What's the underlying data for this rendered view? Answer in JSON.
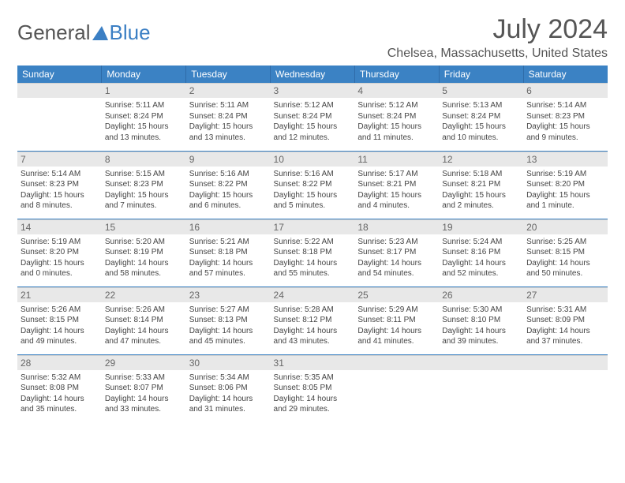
{
  "logo": {
    "part1": "General",
    "part2": "Blue"
  },
  "title": "July 2024",
  "location": "Chelsea, Massachusetts, United States",
  "day_headers": [
    "Sunday",
    "Monday",
    "Tuesday",
    "Wednesday",
    "Thursday",
    "Friday",
    "Saturday"
  ],
  "colors": {
    "header_bg": "#3b82c4",
    "daynum_bg": "#e8e8e8",
    "text": "#555",
    "cell_text": "#444"
  },
  "weeks": [
    [
      {
        "num": "",
        "sunrise": "",
        "sunset": "",
        "daylight1": "",
        "daylight2": ""
      },
      {
        "num": "1",
        "sunrise": "Sunrise: 5:11 AM",
        "sunset": "Sunset: 8:24 PM",
        "daylight1": "Daylight: 15 hours",
        "daylight2": "and 13 minutes."
      },
      {
        "num": "2",
        "sunrise": "Sunrise: 5:11 AM",
        "sunset": "Sunset: 8:24 PM",
        "daylight1": "Daylight: 15 hours",
        "daylight2": "and 13 minutes."
      },
      {
        "num": "3",
        "sunrise": "Sunrise: 5:12 AM",
        "sunset": "Sunset: 8:24 PM",
        "daylight1": "Daylight: 15 hours",
        "daylight2": "and 12 minutes."
      },
      {
        "num": "4",
        "sunrise": "Sunrise: 5:12 AM",
        "sunset": "Sunset: 8:24 PM",
        "daylight1": "Daylight: 15 hours",
        "daylight2": "and 11 minutes."
      },
      {
        "num": "5",
        "sunrise": "Sunrise: 5:13 AM",
        "sunset": "Sunset: 8:24 PM",
        "daylight1": "Daylight: 15 hours",
        "daylight2": "and 10 minutes."
      },
      {
        "num": "6",
        "sunrise": "Sunrise: 5:14 AM",
        "sunset": "Sunset: 8:23 PM",
        "daylight1": "Daylight: 15 hours",
        "daylight2": "and 9 minutes."
      }
    ],
    [
      {
        "num": "7",
        "sunrise": "Sunrise: 5:14 AM",
        "sunset": "Sunset: 8:23 PM",
        "daylight1": "Daylight: 15 hours",
        "daylight2": "and 8 minutes."
      },
      {
        "num": "8",
        "sunrise": "Sunrise: 5:15 AM",
        "sunset": "Sunset: 8:23 PM",
        "daylight1": "Daylight: 15 hours",
        "daylight2": "and 7 minutes."
      },
      {
        "num": "9",
        "sunrise": "Sunrise: 5:16 AM",
        "sunset": "Sunset: 8:22 PM",
        "daylight1": "Daylight: 15 hours",
        "daylight2": "and 6 minutes."
      },
      {
        "num": "10",
        "sunrise": "Sunrise: 5:16 AM",
        "sunset": "Sunset: 8:22 PM",
        "daylight1": "Daylight: 15 hours",
        "daylight2": "and 5 minutes."
      },
      {
        "num": "11",
        "sunrise": "Sunrise: 5:17 AM",
        "sunset": "Sunset: 8:21 PM",
        "daylight1": "Daylight: 15 hours",
        "daylight2": "and 4 minutes."
      },
      {
        "num": "12",
        "sunrise": "Sunrise: 5:18 AM",
        "sunset": "Sunset: 8:21 PM",
        "daylight1": "Daylight: 15 hours",
        "daylight2": "and 2 minutes."
      },
      {
        "num": "13",
        "sunrise": "Sunrise: 5:19 AM",
        "sunset": "Sunset: 8:20 PM",
        "daylight1": "Daylight: 15 hours",
        "daylight2": "and 1 minute."
      }
    ],
    [
      {
        "num": "14",
        "sunrise": "Sunrise: 5:19 AM",
        "sunset": "Sunset: 8:20 PM",
        "daylight1": "Daylight: 15 hours",
        "daylight2": "and 0 minutes."
      },
      {
        "num": "15",
        "sunrise": "Sunrise: 5:20 AM",
        "sunset": "Sunset: 8:19 PM",
        "daylight1": "Daylight: 14 hours",
        "daylight2": "and 58 minutes."
      },
      {
        "num": "16",
        "sunrise": "Sunrise: 5:21 AM",
        "sunset": "Sunset: 8:18 PM",
        "daylight1": "Daylight: 14 hours",
        "daylight2": "and 57 minutes."
      },
      {
        "num": "17",
        "sunrise": "Sunrise: 5:22 AM",
        "sunset": "Sunset: 8:18 PM",
        "daylight1": "Daylight: 14 hours",
        "daylight2": "and 55 minutes."
      },
      {
        "num": "18",
        "sunrise": "Sunrise: 5:23 AM",
        "sunset": "Sunset: 8:17 PM",
        "daylight1": "Daylight: 14 hours",
        "daylight2": "and 54 minutes."
      },
      {
        "num": "19",
        "sunrise": "Sunrise: 5:24 AM",
        "sunset": "Sunset: 8:16 PM",
        "daylight1": "Daylight: 14 hours",
        "daylight2": "and 52 minutes."
      },
      {
        "num": "20",
        "sunrise": "Sunrise: 5:25 AM",
        "sunset": "Sunset: 8:15 PM",
        "daylight1": "Daylight: 14 hours",
        "daylight2": "and 50 minutes."
      }
    ],
    [
      {
        "num": "21",
        "sunrise": "Sunrise: 5:26 AM",
        "sunset": "Sunset: 8:15 PM",
        "daylight1": "Daylight: 14 hours",
        "daylight2": "and 49 minutes."
      },
      {
        "num": "22",
        "sunrise": "Sunrise: 5:26 AM",
        "sunset": "Sunset: 8:14 PM",
        "daylight1": "Daylight: 14 hours",
        "daylight2": "and 47 minutes."
      },
      {
        "num": "23",
        "sunrise": "Sunrise: 5:27 AM",
        "sunset": "Sunset: 8:13 PM",
        "daylight1": "Daylight: 14 hours",
        "daylight2": "and 45 minutes."
      },
      {
        "num": "24",
        "sunrise": "Sunrise: 5:28 AM",
        "sunset": "Sunset: 8:12 PM",
        "daylight1": "Daylight: 14 hours",
        "daylight2": "and 43 minutes."
      },
      {
        "num": "25",
        "sunrise": "Sunrise: 5:29 AM",
        "sunset": "Sunset: 8:11 PM",
        "daylight1": "Daylight: 14 hours",
        "daylight2": "and 41 minutes."
      },
      {
        "num": "26",
        "sunrise": "Sunrise: 5:30 AM",
        "sunset": "Sunset: 8:10 PM",
        "daylight1": "Daylight: 14 hours",
        "daylight2": "and 39 minutes."
      },
      {
        "num": "27",
        "sunrise": "Sunrise: 5:31 AM",
        "sunset": "Sunset: 8:09 PM",
        "daylight1": "Daylight: 14 hours",
        "daylight2": "and 37 minutes."
      }
    ],
    [
      {
        "num": "28",
        "sunrise": "Sunrise: 5:32 AM",
        "sunset": "Sunset: 8:08 PM",
        "daylight1": "Daylight: 14 hours",
        "daylight2": "and 35 minutes."
      },
      {
        "num": "29",
        "sunrise": "Sunrise: 5:33 AM",
        "sunset": "Sunset: 8:07 PM",
        "daylight1": "Daylight: 14 hours",
        "daylight2": "and 33 minutes."
      },
      {
        "num": "30",
        "sunrise": "Sunrise: 5:34 AM",
        "sunset": "Sunset: 8:06 PM",
        "daylight1": "Daylight: 14 hours",
        "daylight2": "and 31 minutes."
      },
      {
        "num": "31",
        "sunrise": "Sunrise: 5:35 AM",
        "sunset": "Sunset: 8:05 PM",
        "daylight1": "Daylight: 14 hours",
        "daylight2": "and 29 minutes."
      },
      {
        "num": "",
        "sunrise": "",
        "sunset": "",
        "daylight1": "",
        "daylight2": ""
      },
      {
        "num": "",
        "sunrise": "",
        "sunset": "",
        "daylight1": "",
        "daylight2": ""
      },
      {
        "num": "",
        "sunrise": "",
        "sunset": "",
        "daylight1": "",
        "daylight2": ""
      }
    ]
  ]
}
